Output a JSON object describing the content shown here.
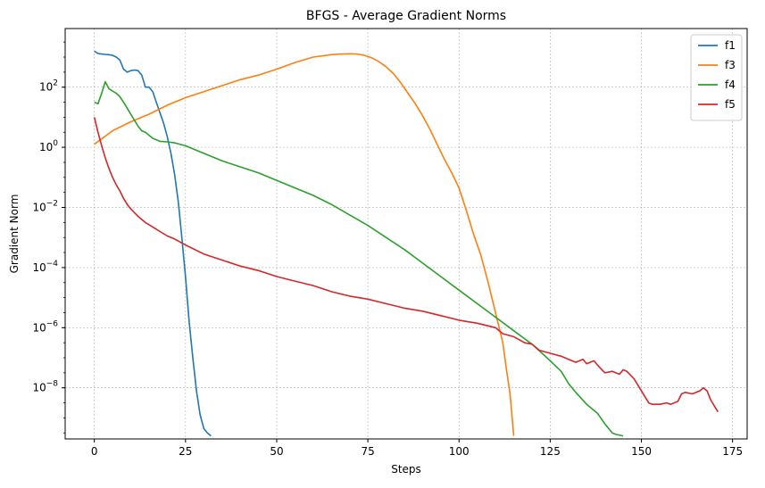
{
  "chart_data": {
    "type": "line",
    "title": "BFGS - Average Gradient Norms",
    "xlabel": "Steps",
    "ylabel": "Gradient Norm",
    "xlim": [
      -8,
      179
    ],
    "ylim_log10": [
      -9.7,
      3.95
    ],
    "yscale": "log",
    "grid": true,
    "legend_position": "top-right",
    "xticks": [
      0,
      25,
      50,
      75,
      100,
      125,
      150,
      175
    ],
    "yticks_exp": [
      2,
      0,
      -2,
      -4,
      -6,
      -8
    ],
    "series": [
      {
        "name": "f1",
        "color": "#1f77b4",
        "x": [
          0,
          1,
          2,
          3,
          4,
          5,
          6,
          7,
          8,
          9,
          10,
          11,
          12,
          13,
          14,
          15,
          16,
          17,
          18,
          19,
          20,
          21,
          22,
          23,
          24,
          25,
          26,
          27,
          28,
          29,
          30,
          31,
          32
        ],
        "log10y": [
          3.2,
          3.12,
          3.1,
          3.09,
          3.08,
          3.06,
          3.0,
          2.9,
          2.6,
          2.5,
          2.55,
          2.57,
          2.55,
          2.4,
          2.0,
          2.0,
          1.85,
          1.5,
          1.15,
          0.8,
          0.35,
          -0.2,
          -0.9,
          -1.8,
          -3.0,
          -4.3,
          -5.8,
          -7.0,
          -8.1,
          -8.9,
          -9.35,
          -9.5,
          -9.6
        ]
      },
      {
        "name": "f3",
        "color": "#ff7f0e",
        "x": [
          0,
          5,
          10,
          15,
          20,
          25,
          30,
          35,
          40,
          45,
          50,
          55,
          60,
          65,
          67,
          70,
          72,
          74,
          76,
          78,
          80,
          82,
          84,
          86,
          88,
          90,
          92,
          94,
          96,
          98,
          100,
          102,
          104,
          106,
          108,
          110,
          112,
          113,
          114,
          115
        ],
        "log10y": [
          0.1,
          0.55,
          0.85,
          1.1,
          1.4,
          1.65,
          1.85,
          2.05,
          2.25,
          2.4,
          2.6,
          2.82,
          3.0,
          3.08,
          3.1,
          3.11,
          3.1,
          3.06,
          2.98,
          2.85,
          2.68,
          2.45,
          2.15,
          1.8,
          1.45,
          1.05,
          0.6,
          0.1,
          -0.4,
          -0.85,
          -1.35,
          -2.1,
          -2.9,
          -3.6,
          -4.5,
          -5.5,
          -6.5,
          -7.4,
          -8.2,
          -9.6
        ]
      },
      {
        "name": "f4",
        "color": "#2ca02c",
        "x": [
          0,
          1,
          2,
          3,
          4,
          5,
          6,
          7,
          8,
          9,
          10,
          11,
          12,
          13,
          14,
          15,
          16,
          17,
          18,
          20,
          22,
          25,
          30,
          35,
          40,
          45,
          50,
          55,
          60,
          65,
          70,
          75,
          80,
          85,
          90,
          95,
          100,
          105,
          110,
          115,
          120,
          125,
          128,
          130,
          132,
          135,
          138,
          140,
          142,
          143,
          145
        ],
        "log10y": [
          1.5,
          1.45,
          1.8,
          2.18,
          1.95,
          1.87,
          1.8,
          1.68,
          1.5,
          1.3,
          1.1,
          0.9,
          0.7,
          0.55,
          0.5,
          0.4,
          0.3,
          0.25,
          0.2,
          0.18,
          0.15,
          0.05,
          -0.2,
          -0.45,
          -0.65,
          -0.85,
          -1.1,
          -1.35,
          -1.6,
          -1.9,
          -2.25,
          -2.6,
          -3.0,
          -3.4,
          -3.85,
          -4.3,
          -4.75,
          -5.2,
          -5.65,
          -6.1,
          -6.55,
          -7.1,
          -7.45,
          -7.85,
          -8.15,
          -8.55,
          -8.85,
          -9.2,
          -9.5,
          -9.55,
          -9.6
        ]
      },
      {
        "name": "f5",
        "color": "#d62728",
        "x": [
          0,
          1,
          2,
          3,
          4,
          5,
          6,
          7,
          8,
          9,
          10,
          12,
          14,
          16,
          18,
          20,
          22,
          25,
          30,
          35,
          40,
          45,
          50,
          55,
          60,
          65,
          70,
          75,
          80,
          85,
          90,
          95,
          100,
          105,
          110,
          112,
          115,
          118,
          120,
          122,
          125,
          128,
          130,
          132,
          134,
          135,
          137,
          138,
          140,
          142,
          144,
          145,
          146,
          148,
          150,
          152,
          153,
          155,
          157,
          158,
          160,
          161,
          162,
          164,
          165,
          166,
          167,
          168,
          169,
          171
        ],
        "log10y": [
          1.0,
          0.5,
          0.05,
          -0.35,
          -0.7,
          -1.0,
          -1.25,
          -1.45,
          -1.7,
          -1.9,
          -2.05,
          -2.3,
          -2.5,
          -2.65,
          -2.8,
          -2.95,
          -3.05,
          -3.25,
          -3.55,
          -3.75,
          -3.95,
          -4.1,
          -4.3,
          -4.45,
          -4.6,
          -4.8,
          -4.95,
          -5.05,
          -5.2,
          -5.35,
          -5.45,
          -5.6,
          -5.75,
          -5.85,
          -6.0,
          -6.2,
          -6.3,
          -6.5,
          -6.55,
          -6.75,
          -6.85,
          -6.95,
          -7.05,
          -7.15,
          -7.05,
          -7.2,
          -7.1,
          -7.25,
          -7.5,
          -7.45,
          -7.55,
          -7.4,
          -7.45,
          -7.7,
          -8.1,
          -8.5,
          -8.55,
          -8.55,
          -8.5,
          -8.55,
          -8.45,
          -8.2,
          -8.15,
          -8.2,
          -8.15,
          -8.1,
          -8.0,
          -8.1,
          -8.4,
          -8.8
        ]
      }
    ]
  }
}
